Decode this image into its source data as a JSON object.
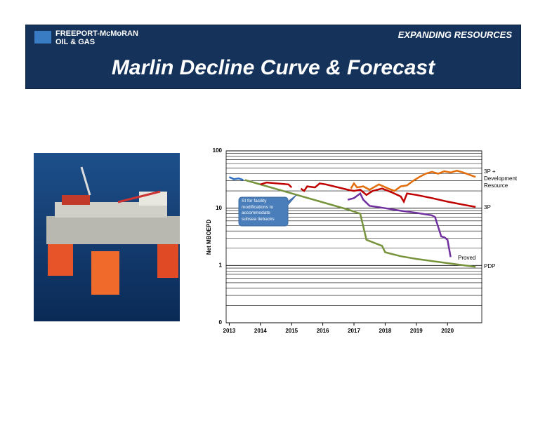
{
  "header": {
    "logo_line1": "FREEPORT-McMoRAN",
    "logo_line2": "OIL & GAS",
    "tagline": "EXPANDING RESOURCES",
    "title": "Marlin Decline Curve & Forecast"
  },
  "chart_data": {
    "type": "line",
    "y_label": "Net MBOEPD",
    "log_scale": true,
    "grid": true,
    "minor_grid": true,
    "xlim": [
      2012.9,
      2021.1
    ],
    "xticks": [
      2013,
      2014,
      2015,
      2016,
      2017,
      2018,
      2019,
      2020
    ],
    "ylim": [
      0.1,
      100
    ],
    "yticks": [
      {
        "value": 0.1,
        "label": "0"
      },
      1,
      10,
      100
    ],
    "annotation": "SI for facility modifications to accommodate subsea tiebacks",
    "series": [
      {
        "color": "#2f6fc0",
        "x": [
          2013.0,
          2013.15,
          2013.3,
          2013.45
        ],
        "values": [
          35,
          32,
          33,
          31
        ]
      },
      {
        "name": "PDP",
        "color": "#77933c",
        "x": [
          2013.5,
          2014.87,
          2016.8,
          2017.2,
          2017.4,
          2017.9,
          2018.0,
          2018.5,
          2019.0,
          2020.0,
          2020.9
        ],
        "values": [
          31,
          19,
          9.5,
          8,
          2.8,
          2.2,
          1.7,
          1.45,
          1.3,
          1.1,
          0.95
        ]
      },
      {
        "name": "3P",
        "color": "#c00000",
        "x": [
          2014.0,
          2014.2,
          2014.9,
          2015.0,
          null,
          2015.3,
          2015.4,
          2015.5,
          2015.75,
          2015.9,
          2016.1,
          2016.8,
          2017.0,
          2017.2,
          2017.4,
          2017.6,
          2017.9,
          2018.2,
          2018.5,
          2018.6,
          2018.7,
          2019.0,
          2019.5,
          2020.0,
          2020.5,
          2020.9
        ],
        "values": [
          26,
          28,
          26,
          23,
          null,
          22,
          20,
          24,
          23,
          27,
          26,
          21,
          20,
          21,
          17,
          20,
          22,
          19,
          16,
          13,
          18,
          17,
          15,
          13,
          11.5,
          10.5
        ]
      },
      {
        "name": "3P + Development Resource",
        "color": "#e36c0a",
        "x": [
          2016.9,
          2017.0,
          2017.1,
          2017.3,
          2017.5,
          2017.8,
          2018.1,
          2018.3,
          2018.5,
          2018.7,
          2018.9,
          2019.1,
          2019.3,
          2019.5,
          2019.7,
          2019.9,
          2020.1,
          2020.3,
          2020.5,
          2020.9
        ],
        "values": [
          22,
          27,
          23,
          24,
          21,
          26,
          22,
          20,
          24,
          25,
          30,
          35,
          40,
          43,
          40,
          44,
          42,
          45,
          42,
          35
        ]
      },
      {
        "name": "Proved",
        "color": "#7030a0",
        "x": [
          2016.8,
          2017.0,
          2017.2,
          2017.3,
          2017.5,
          2018.0,
          2018.5,
          2019.0,
          2019.5,
          2019.6,
          2019.8,
          2019.9,
          2020.0,
          2020.1
        ],
        "values": [
          14,
          15,
          18,
          14,
          11,
          10,
          9,
          8.3,
          7.5,
          7.0,
          3.2,
          3.1,
          2.8,
          1.4
        ]
      }
    ]
  }
}
